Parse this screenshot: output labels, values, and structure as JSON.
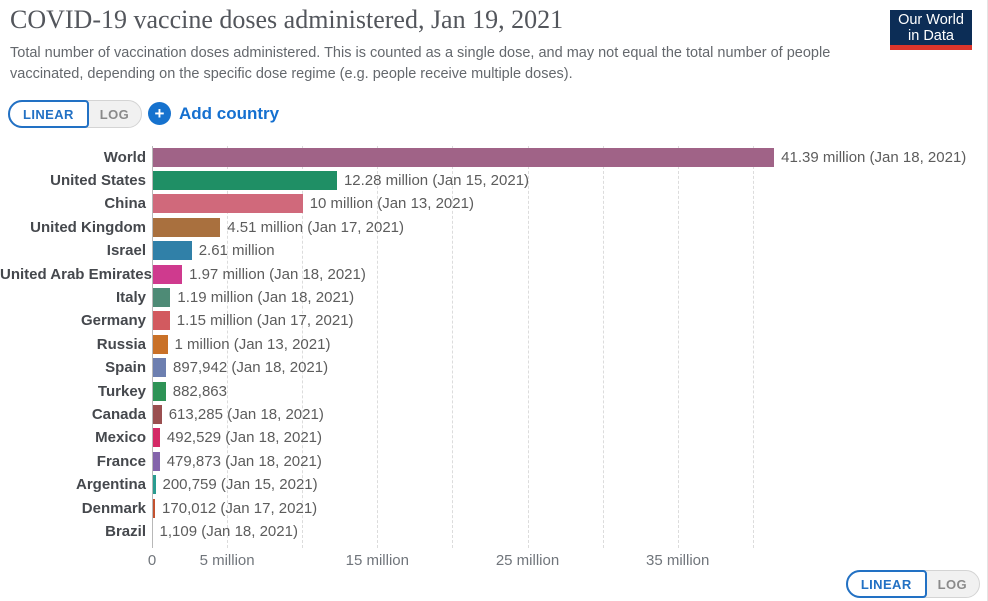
{
  "header": {
    "title": "COVID-19 vaccine doses administered, Jan 19, 2021",
    "subtitle": "Total number of vaccination doses administered. This is counted as a single dose, and may not equal the total number of people vaccinated, depending on the specific dose regime (e.g. people receive multiple doses)."
  },
  "logo": {
    "line1": "Our World",
    "line2": "in Data",
    "bg_color": "#0c2d56",
    "accent_color": "#dc352c"
  },
  "controls": {
    "linear_label": "LINEAR",
    "log_label": "LOG",
    "add_country_label": "Add country",
    "add_icon_glyph": "+",
    "accent_blue": "#1570d0"
  },
  "chart_data": {
    "type": "bar",
    "orientation": "horizontal",
    "title": "COVID-19 vaccine doses administered, Jan 19, 2021",
    "xlabel": "",
    "ylabel": "",
    "xlim_millions": [
      0,
      55
    ],
    "grid": "dashed-vertical",
    "axis": {
      "ticks": [
        {
          "label": "0",
          "millions": 0
        },
        {
          "label": "5 million",
          "millions": 5
        },
        {
          "label": "15 million",
          "millions": 15
        },
        {
          "label": "25 million",
          "millions": 25
        },
        {
          "label": "35 million",
          "millions": 35
        }
      ],
      "gridlines_millions": [
        5,
        10,
        15,
        20,
        25,
        30,
        35,
        40
      ]
    },
    "rows": [
      {
        "label": "World",
        "millions": 41.39,
        "value_label": "41.39 million (Jan 18, 2021)",
        "color": "#a06387"
      },
      {
        "label": "United States",
        "millions": 12.28,
        "value_label": "12.28 million (Jan 15, 2021)",
        "color": "#1f8f65"
      },
      {
        "label": "China",
        "millions": 10,
        "value_label": "10 million (Jan 13, 2021)",
        "color": "#d0697b"
      },
      {
        "label": "United Kingdom",
        "millions": 4.51,
        "value_label": "4.51 million (Jan 17, 2021)",
        "color": "#a9703e"
      },
      {
        "label": "Israel",
        "millions": 2.61,
        "value_label": "2.61 million",
        "color": "#3080a8"
      },
      {
        "label": "United Arab Emirates",
        "millions": 1.97,
        "value_label": "1.97 million (Jan 18, 2021)",
        "color": "#cf3a8e"
      },
      {
        "label": "Italy",
        "millions": 1.19,
        "value_label": "1.19 million (Jan 18, 2021)",
        "color": "#4e8b76"
      },
      {
        "label": "Germany",
        "millions": 1.15,
        "value_label": "1.15 million (Jan 17, 2021)",
        "color": "#d25a5f"
      },
      {
        "label": "Russia",
        "millions": 1,
        "value_label": "1 million (Jan 13, 2021)",
        "color": "#c97128"
      },
      {
        "label": "Spain",
        "millions": 0.897942,
        "value_label": "897,942 (Jan 18, 2021)",
        "color": "#6d7fb0"
      },
      {
        "label": "Turkey",
        "millions": 0.882863,
        "value_label": "882,863",
        "color": "#2e9356"
      },
      {
        "label": "Canada",
        "millions": 0.613285,
        "value_label": "613,285 (Jan 18, 2021)",
        "color": "#9a4f50"
      },
      {
        "label": "Mexico",
        "millions": 0.492529,
        "value_label": "492,529 (Jan 18, 2021)",
        "color": "#d42a66"
      },
      {
        "label": "France",
        "millions": 0.479873,
        "value_label": "479,873 (Jan 18, 2021)",
        "color": "#8464ab"
      },
      {
        "label": "Argentina",
        "millions": 0.200759,
        "value_label": "200,759 (Jan 15, 2021)",
        "color": "#2a9c90"
      },
      {
        "label": "Denmark",
        "millions": 0.170012,
        "value_label": "170,012 (Jan 17, 2021)",
        "color": "#c3512f"
      },
      {
        "label": "Brazil",
        "millions": 0.001109,
        "value_label": "1,109 (Jan 18, 2021)",
        "color": "#888888"
      }
    ]
  }
}
